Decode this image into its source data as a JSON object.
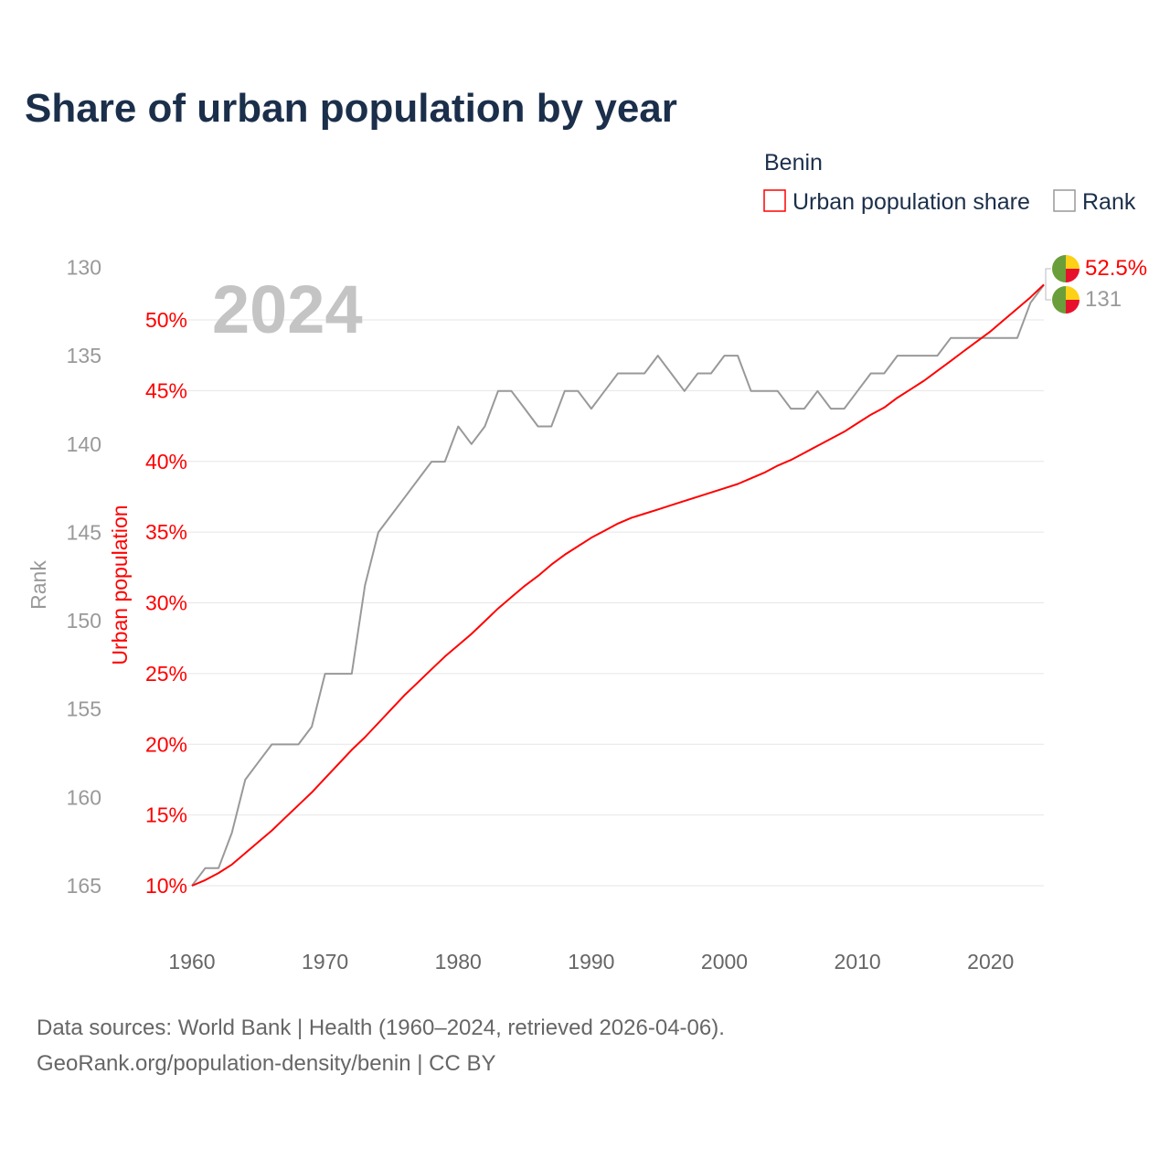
{
  "title": "Share of urban population by year",
  "legend": {
    "heading": "Benin",
    "items": [
      {
        "label": "Urban population share",
        "color": "#ff0000"
      },
      {
        "label": "Rank",
        "color": "#999999"
      }
    ]
  },
  "current_year": "2024",
  "end_labels": {
    "share": "52.5%",
    "rank": "131"
  },
  "flag_icon": "benin-flag-icon",
  "footer": {
    "line1": "Data sources: World Bank | Health (1960–2024, retrieved 2026-04-06).",
    "line2": "GeoRank.org/population-density/benin | CC BY"
  },
  "chart_data": {
    "type": "line",
    "title": "Share of urban population by year",
    "xlabel": "",
    "ylabel_left_outer": "Rank",
    "ylabel_left_inner": "Urban population",
    "xlim": [
      1960,
      2024
    ],
    "x_ticks": [
      1960,
      1970,
      1980,
      1990,
      2000,
      2010,
      2020
    ],
    "pct_ticks": [
      10,
      15,
      20,
      25,
      30,
      35,
      40,
      45,
      50
    ],
    "pct_tick_labels": [
      "10%",
      "15%",
      "20%",
      "25%",
      "30%",
      "35%",
      "40%",
      "45%",
      "50%"
    ],
    "rank_ticks": [
      130,
      135,
      140,
      145,
      150,
      155,
      160,
      165
    ],
    "pct_range": [
      10,
      50
    ],
    "rank_range": [
      165,
      130
    ],
    "grid": true,
    "legend_placement": "top-right",
    "x": [
      1960,
      1961,
      1962,
      1963,
      1964,
      1965,
      1966,
      1967,
      1968,
      1969,
      1970,
      1971,
      1972,
      1973,
      1974,
      1975,
      1976,
      1977,
      1978,
      1979,
      1980,
      1981,
      1982,
      1983,
      1984,
      1985,
      1986,
      1987,
      1988,
      1989,
      1990,
      1991,
      1992,
      1993,
      1994,
      1995,
      1996,
      1997,
      1998,
      1999,
      2000,
      2001,
      2002,
      2003,
      2004,
      2005,
      2006,
      2007,
      2008,
      2009,
      2010,
      2011,
      2012,
      2013,
      2014,
      2015,
      2016,
      2017,
      2018,
      2019,
      2020,
      2021,
      2022,
      2023,
      2024
    ],
    "series": [
      {
        "name": "Urban population share",
        "color": "#ff0000",
        "values": [
          10.0,
          10.4,
          10.9,
          11.5,
          12.3,
          13.1,
          13.9,
          14.8,
          15.7,
          16.6,
          17.6,
          18.6,
          19.6,
          20.5,
          21.5,
          22.5,
          23.5,
          24.4,
          25.3,
          26.2,
          27.0,
          27.8,
          28.7,
          29.6,
          30.4,
          31.2,
          31.9,
          32.7,
          33.4,
          34.0,
          34.6,
          35.1,
          35.6,
          36.0,
          36.3,
          36.6,
          36.9,
          37.2,
          37.5,
          37.8,
          38.1,
          38.4,
          38.8,
          39.2,
          39.7,
          40.1,
          40.6,
          41.1,
          41.6,
          42.1,
          42.7,
          43.3,
          43.8,
          44.5,
          45.1,
          45.7,
          46.4,
          47.1,
          47.8,
          48.5,
          49.2,
          50.0,
          50.8,
          51.6,
          52.5
        ]
      },
      {
        "name": "Rank",
        "color": "#999999",
        "values": [
          165,
          164,
          164,
          162,
          159,
          158,
          157,
          157,
          157,
          156,
          153,
          153,
          153,
          148,
          145,
          144,
          143,
          142,
          141,
          141,
          139,
          140,
          139,
          137,
          137,
          138,
          139,
          139,
          137,
          137,
          138,
          137,
          136,
          136,
          136,
          135,
          136,
          137,
          136,
          136,
          135,
          135,
          137,
          137,
          137,
          138,
          138,
          137,
          138,
          138,
          137,
          136,
          136,
          135,
          135,
          135,
          135,
          134,
          134,
          134,
          134,
          134,
          134,
          132,
          131
        ]
      }
    ]
  }
}
